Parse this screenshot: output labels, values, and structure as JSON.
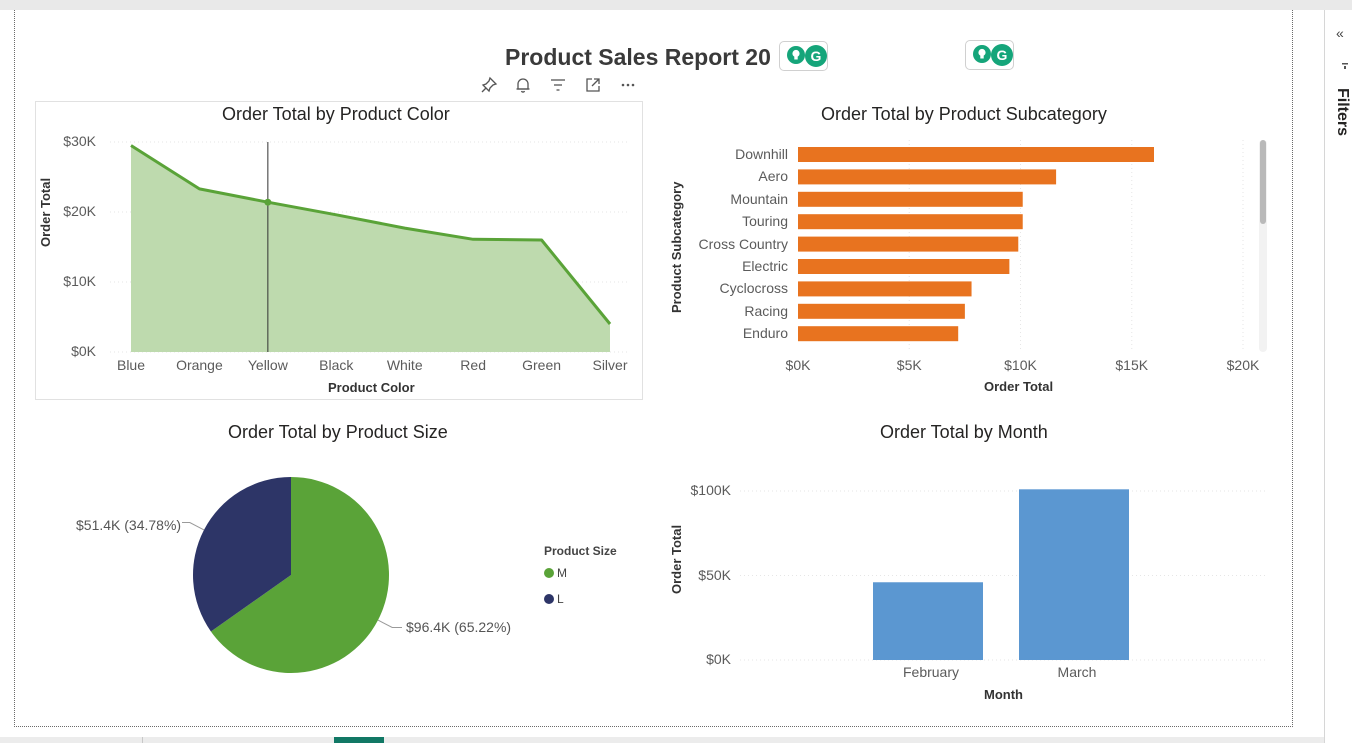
{
  "report": {
    "title": "Product Sales Report 20"
  },
  "filters": {
    "label": "Filters",
    "collapse_icon": "«"
  },
  "visual_header": {
    "icons": [
      "pin-icon",
      "bell-icon",
      "filter-icon",
      "focus-mode-icon",
      "more-options-icon"
    ]
  },
  "colors": {
    "area_line": "#5aa338",
    "area_fill": "#bedaae",
    "bar_orange": "#e8731f",
    "pie_m": "#5aa338",
    "pie_l": "#2d3567",
    "bar_blue": "#5b97d1",
    "grammarly": "#15a57a"
  },
  "chart_data": [
    {
      "type": "area",
      "title": "Order Total by Product Color",
      "xlabel": "Product Color",
      "ylabel": "Order Total",
      "categories": [
        "Blue",
        "Orange",
        "Yellow",
        "Black",
        "White",
        "Red",
        "Green",
        "Silver"
      ],
      "values": [
        29500,
        23300,
        21400,
        19600,
        17700,
        16100,
        16000,
        4000
      ],
      "ylim": [
        0,
        30000
      ],
      "yticks": [
        "$30K",
        "$20K",
        "$10K",
        "$0K"
      ],
      "ytick_values": [
        30000,
        20000,
        10000,
        0
      ],
      "hover_category": "Yellow"
    },
    {
      "type": "bar",
      "orientation": "horizontal",
      "title": "Order Total by Product Subcategory",
      "xlabel": "Order Total",
      "ylabel": "Product Subcategory",
      "categories": [
        "Downhill",
        "Aero",
        "Mountain",
        "Touring",
        "Cross Country",
        "Electric",
        "Cyclocross",
        "Racing",
        "Enduro"
      ],
      "values": [
        16000,
        11600,
        10100,
        10100,
        9900,
        9500,
        7800,
        7500,
        7200
      ],
      "xlim": [
        0,
        20000
      ],
      "xticks": [
        "$0K",
        "$5K",
        "$10K",
        "$15K",
        "$20K"
      ],
      "xtick_values": [
        0,
        5000,
        10000,
        15000,
        20000
      ]
    },
    {
      "type": "pie",
      "title": "Order Total by Product Size",
      "legend_title": "Product Size",
      "slices": [
        {
          "name": "M",
          "value": 96400,
          "percent": 65.22,
          "label": "$96.4K (65.22%)"
        },
        {
          "name": "L",
          "value": 51400,
          "percent": 34.78,
          "label": "$51.4K (34.78%)"
        }
      ]
    },
    {
      "type": "bar",
      "title": "Order Total by Month",
      "xlabel": "Month",
      "ylabel": "Order Total",
      "categories": [
        "February",
        "March"
      ],
      "values": [
        46000,
        101000
      ],
      "ylim": [
        0,
        100000
      ],
      "yticks": [
        "$100K",
        "$50K",
        "$0K"
      ],
      "ytick_values": [
        100000,
        50000,
        0
      ]
    }
  ]
}
